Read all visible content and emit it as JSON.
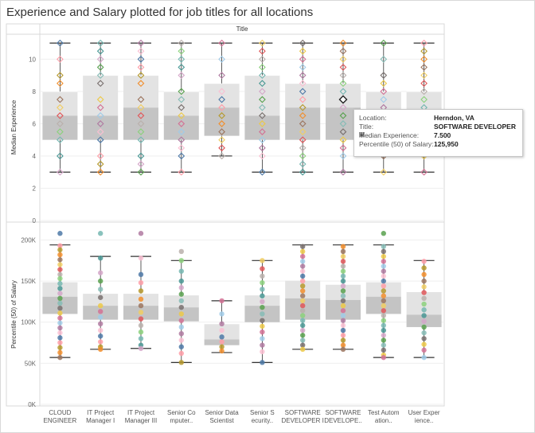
{
  "title": "Experience and Salary plotted for job titles for all locations",
  "column_header": "Title",
  "tooltip": {
    "rows": [
      {
        "key": "Location:",
        "value": "Herndon, VA"
      },
      {
        "key": "Title:",
        "value": "SOFTWARE DEVELOPER III"
      },
      {
        "key": "Median Experience:",
        "value": "7.500"
      },
      {
        "key": "Percentile (50) of Salary:",
        "value": "125,950"
      }
    ]
  },
  "colors": {
    "box_outer": "#e3e3e3",
    "box_inner": "#c4c4c4",
    "whisker": "#333333",
    "palette": [
      "#4e79a7",
      "#f28e2b",
      "#e15759",
      "#76b7b2",
      "#59a14f",
      "#edc948",
      "#b07aa1",
      "#ff9da7",
      "#9c755f",
      "#bab0ac",
      "#499894",
      "#86bcb6",
      "#d37295",
      "#fabfd2",
      "#b6992d",
      "#f1ce63",
      "#8cd17d",
      "#d4a6c8",
      "#79706e",
      "#a0cbe8"
    ]
  },
  "chart_data": [
    {
      "type": "box",
      "ylabel": "Median Experience",
      "ylim": [
        0,
        11.5
      ],
      "yticks": [
        0,
        2,
        4,
        6,
        8,
        10
      ],
      "tick_labels": [
        "0",
        "2",
        "4",
        "6",
        "8",
        "10"
      ],
      "categories": [
        "CLOUD ENGINEER",
        "IT Project Manager I",
        "IT Project Manager III",
        "Senior Computer...",
        "Senior Data Scientist",
        "Senior Security...",
        "SOFTWARE DEVELOPER I",
        "SOFTWARE DEVELOPER...",
        "Test Automation...",
        "User Experience..."
      ],
      "category_labels": [
        [
          "CLOUD",
          "ENGINEER"
        ],
        [
          "IT Project",
          "Manager I"
        ],
        [
          "IT Project",
          "Manager III"
        ],
        [
          "Senior Co",
          "mputer.."
        ],
        [
          "Senior Data",
          "Scientist"
        ],
        [
          "Senior S",
          "ecurity.."
        ],
        [
          "SOFTWARE",
          "DEVELOPER I"
        ],
        [
          "SOFTWARE",
          "DEVELOPE.."
        ],
        [
          "Test Autom",
          "ation.."
        ],
        [
          "User Exper",
          "ience.."
        ]
      ],
      "boxes": [
        {
          "min": 3,
          "q1": 5,
          "median": 6.5,
          "q3": 8,
          "max": 11
        },
        {
          "min": 3,
          "q1": 5,
          "median": 6.5,
          "q3": 9,
          "max": 11
        },
        {
          "min": 3,
          "q1": 5,
          "median": 7,
          "q3": 9,
          "max": 11
        },
        {
          "min": 3,
          "q1": 5,
          "median": 6.5,
          "q3": 8,
          "max": 11
        },
        {
          "min": 4,
          "q1": 5.25,
          "median": 7,
          "q3": 8.5,
          "max": 11
        },
        {
          "min": 3,
          "q1": 5,
          "median": 6.5,
          "q3": 9,
          "max": 11
        },
        {
          "min": 3,
          "q1": 5,
          "median": 7,
          "q3": 8.5,
          "max": 11
        },
        {
          "min": 3,
          "q1": 5,
          "median": 7,
          "q3": 8.5,
          "max": 11
        },
        {
          "min": 3,
          "q1": 5,
          "median": 6.5,
          "q3": 8,
          "max": 11
        },
        {
          "min": 3,
          "q1": 5,
          "median": 6.5,
          "q3": 8,
          "max": 11
        }
      ],
      "points": [
        [
          11,
          10,
          9,
          8.5,
          7.5,
          7,
          6.5,
          6,
          5.5,
          5,
          4,
          3
        ],
        [
          11,
          10.5,
          10,
          9.5,
          9,
          8.5,
          7.5,
          7,
          6.5,
          6,
          5.5,
          5,
          4,
          3.5,
          3
        ],
        [
          11,
          10.5,
          10,
          9.5,
          9,
          8.5,
          7.5,
          7,
          6.5,
          6,
          5.5,
          5,
          4,
          3.5,
          3
        ],
        [
          11,
          10.5,
          10,
          9.5,
          9,
          8,
          7.5,
          7,
          6.5,
          6,
          5.5,
          5,
          4.5,
          4,
          3
        ],
        [
          11,
          10,
          9,
          8,
          7.5,
          7,
          6.5,
          6,
          5.5,
          5,
          4.5,
          4
        ],
        [
          11,
          10.5,
          10,
          9.5,
          9,
          8.5,
          8,
          7.5,
          7,
          6.5,
          6,
          5.5,
          5,
          4.5,
          4,
          3
        ],
        [
          11,
          10.5,
          10,
          9.5,
          9,
          8.5,
          8,
          7.5,
          7,
          6.5,
          6,
          5.5,
          5,
          4.5,
          4,
          3.5,
          3
        ],
        [
          11,
          10.5,
          10,
          9.5,
          9,
          8.5,
          8,
          7.5,
          7,
          6.5,
          6,
          5.5,
          5,
          4.5,
          4,
          3
        ],
        [
          11,
          10,
          9,
          8.5,
          8,
          7.5,
          7,
          6.5,
          6,
          5.5,
          5,
          4.5,
          4,
          3
        ],
        [
          11,
          10.5,
          10,
          9.5,
          9,
          8.5,
          8,
          7.5,
          7,
          6.5,
          6,
          5.5,
          5,
          4.5,
          4,
          3
        ]
      ]
    },
    {
      "type": "box",
      "ylabel": "Percentile (50) of Salary",
      "ylim": [
        0,
        215000
      ],
      "yticks": [
        0,
        50000,
        100000,
        150000,
        200000
      ],
      "tick_labels": [
        "0K",
        "50K",
        "100K",
        "150K",
        "200K"
      ],
      "categories": [
        "CLOUD ENGINEER",
        "IT Project Manager I",
        "IT Project Manager III",
        "Senior Computer...",
        "Senior Data Scientist",
        "Senior Security...",
        "SOFTWARE DEVELOPER I",
        "SOFTWARE DEVELOPER...",
        "Test Automation...",
        "User Experience..."
      ],
      "boxes": [
        {
          "min": 57000,
          "q1": 110000,
          "median": 131000,
          "q3": 149000,
          "max": 194000
        },
        {
          "min": 67000,
          "q1": 103000,
          "median": 120000,
          "q3": 135000,
          "max": 180000
        },
        {
          "min": 68000,
          "q1": 103000,
          "median": 120000,
          "q3": 135000,
          "max": 180000
        },
        {
          "min": 51000,
          "q1": 101000,
          "median": 118000,
          "q3": 133000,
          "max": 175000
        },
        {
          "min": 63000,
          "q1": 72000,
          "median": 79000,
          "q3": 98000,
          "max": 126000
        },
        {
          "min": 51000,
          "q1": 100000,
          "median": 120000,
          "q3": 133000,
          "max": 175000
        },
        {
          "min": 67000,
          "q1": 103000,
          "median": 129000,
          "q3": 151000,
          "max": 194000
        },
        {
          "min": 67000,
          "q1": 103000,
          "median": 127000,
          "q3": 146000,
          "max": 194000
        },
        {
          "min": 57000,
          "q1": 110000,
          "median": 131000,
          "q3": 149000,
          "max": 194000
        },
        {
          "min": 57000,
          "q1": 94000,
          "median": 109000,
          "q3": 137000,
          "max": 175000
        }
      ],
      "points": [
        [
          208000,
          193000,
          188000,
          182000,
          176000,
          170000,
          164000,
          158000,
          153000,
          147000,
          141000,
          135000,
          129000,
          123000,
          117000,
          111000,
          105000,
          99000,
          93000,
          87000,
          81000,
          75000,
          69000,
          63000,
          57000
        ],
        [
          208000,
          178000,
          160000,
          150000,
          140000,
          130000,
          120000,
          113000,
          106000,
          98000,
          90000,
          83000,
          76000,
          70000,
          67000
        ],
        [
          208000,
          178000,
          158000,
          148000,
          138000,
          128000,
          120000,
          112000,
          104000,
          96000,
          88000,
          80000,
          72000,
          68000
        ],
        [
          186000,
          175000,
          162000,
          150000,
          142000,
          134000,
          126000,
          118000,
          110000,
          102000,
          94000,
          86000,
          78000,
          70000,
          62000,
          51000
        ],
        [
          126000,
          110000,
          98000,
          90000,
          82000,
          76000,
          70000,
          65000
        ],
        [
          175000,
          165000,
          156000,
          148000,
          140000,
          132000,
          125000,
          118000,
          110000,
          102000,
          95000,
          88000,
          80000,
          72000,
          64000,
          51000
        ],
        [
          192000,
          186000,
          180000,
          174000,
          168000,
          162000,
          156000,
          150000,
          144000,
          138000,
          132000,
          126000,
          120000,
          114000,
          108000,
          102000,
          96000,
          90000,
          84000,
          78000,
          72000,
          67000
        ],
        [
          192000,
          186000,
          180000,
          174000,
          168000,
          162000,
          156000,
          150000,
          144000,
          138000,
          132000,
          126000,
          120000,
          114000,
          108000,
          102000,
          96000,
          90000,
          84000,
          78000,
          72000,
          67000
        ],
        [
          208000,
          192000,
          186000,
          180000,
          174000,
          168000,
          162000,
          156000,
          150000,
          144000,
          138000,
          132000,
          126000,
          120000,
          114000,
          108000,
          102000,
          96000,
          90000,
          84000,
          78000,
          72000,
          66000,
          60000,
          57000
        ],
        [
          174000,
          166000,
          158000,
          150000,
          143000,
          136000,
          129000,
          122000,
          115000,
          108000,
          101000,
          94000,
          87000,
          80000,
          73000,
          66000,
          57000
        ]
      ]
    }
  ]
}
